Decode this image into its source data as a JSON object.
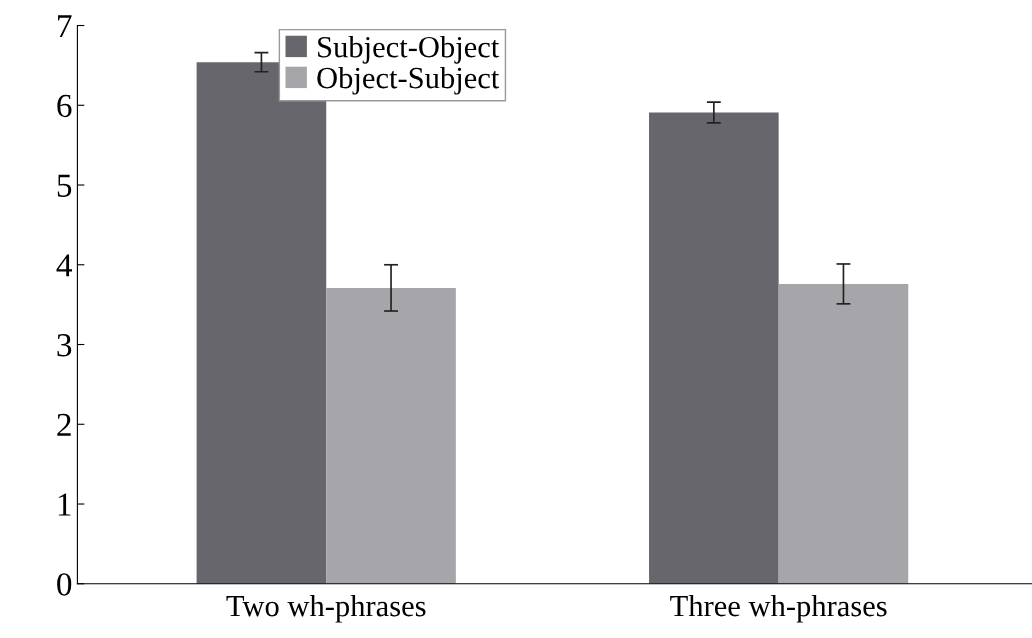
{
  "chart_data": {
    "type": "bar",
    "categories": [
      "Two wh-phrases",
      "Three wh-phrases"
    ],
    "series": [
      {
        "name": "Subject-Object",
        "color": "#67666c",
        "values": [
          6.54,
          5.91
        ],
        "errors": [
          0.12,
          0.13
        ]
      },
      {
        "name": "Object-Subject",
        "color": "#a6a5aa",
        "values": [
          3.71,
          3.76
        ],
        "errors": [
          0.29,
          0.25
        ]
      }
    ],
    "ylim": [
      0,
      7
    ],
    "yticks": [
      0,
      1,
      2,
      3,
      4,
      5,
      6,
      7
    ],
    "grid": false,
    "legend": "top"
  }
}
